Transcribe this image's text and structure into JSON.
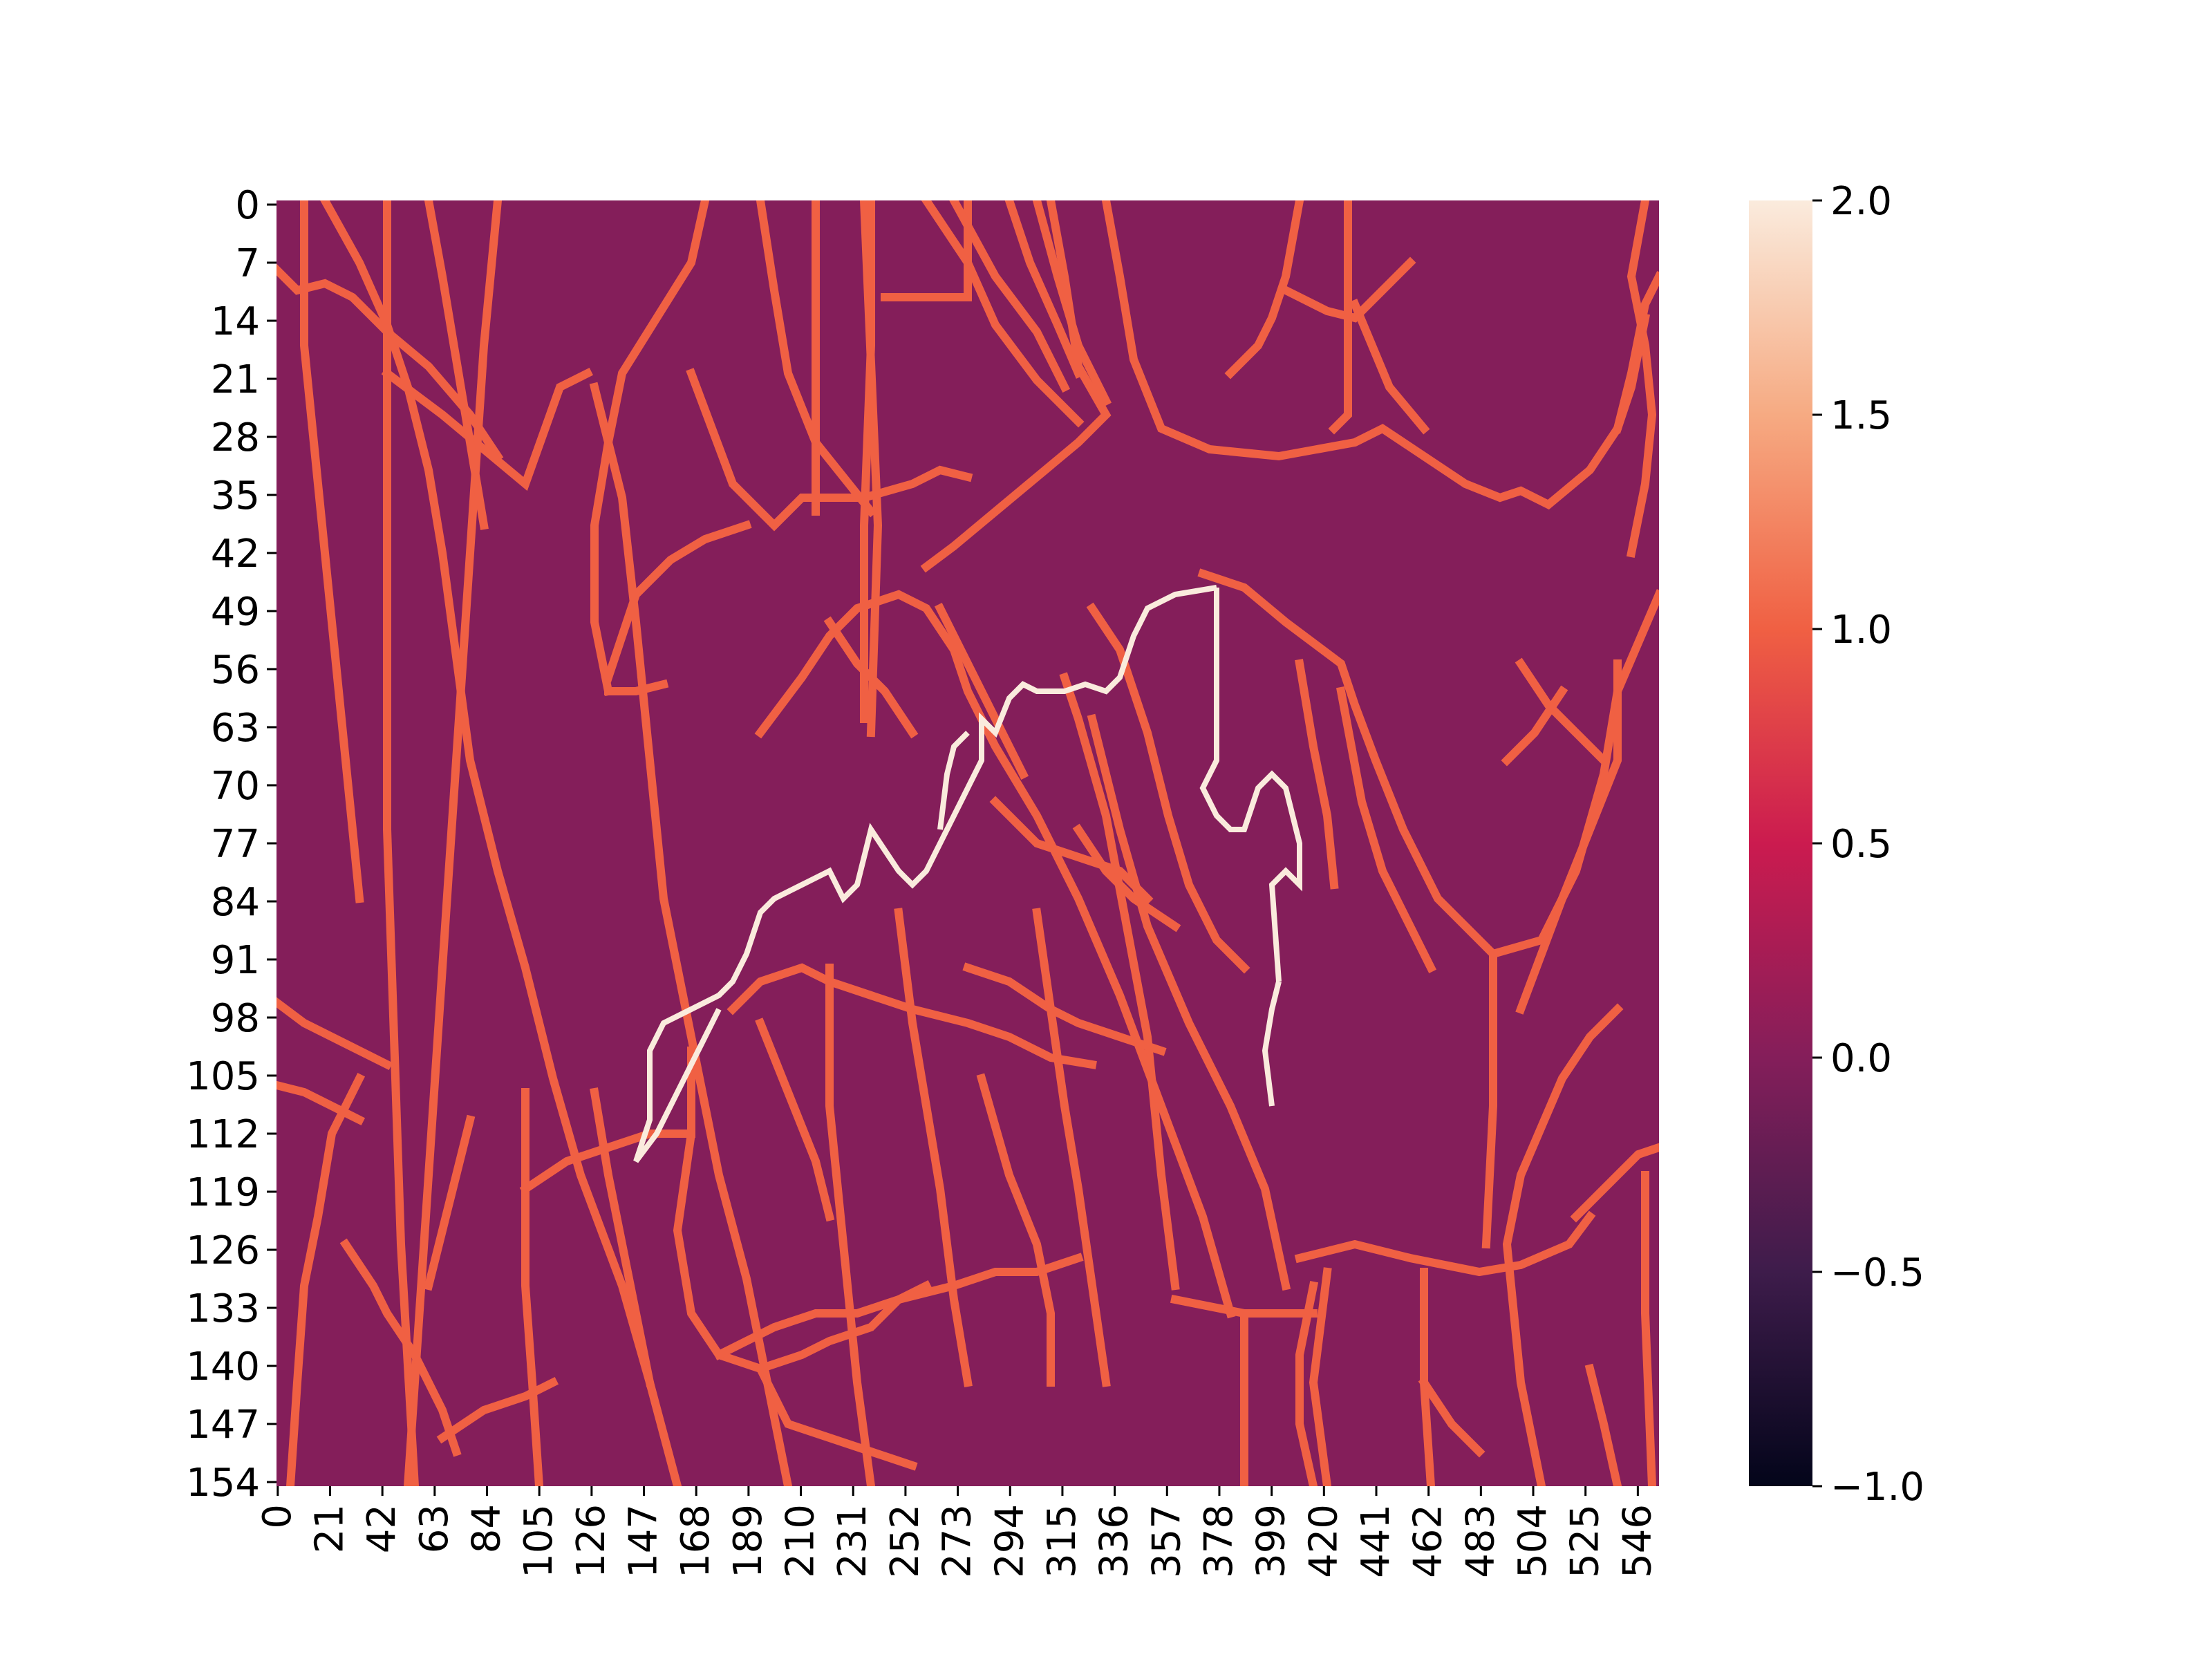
{
  "chart_data": {
    "type": "heatmap",
    "title": "",
    "xlabel": "",
    "ylabel": "",
    "n_cols": 555,
    "n_rows": 155,
    "x_ticks": [
      "0",
      "21",
      "42",
      "63",
      "84",
      "105",
      "126",
      "147",
      "168",
      "189",
      "210",
      "231",
      "252",
      "273",
      "294",
      "315",
      "336",
      "357",
      "378",
      "399",
      "420",
      "441",
      "462",
      "483",
      "504",
      "525",
      "546"
    ],
    "y_ticks": [
      "0",
      "7",
      "14",
      "21",
      "28",
      "35",
      "42",
      "49",
      "56",
      "63",
      "70",
      "77",
      "84",
      "91",
      "98",
      "105",
      "112",
      "119",
      "126",
      "133",
      "140",
      "147",
      "154"
    ],
    "value_range": [
      -1.0,
      2.0
    ],
    "colormap": "rocket",
    "colorbar": {
      "ticks": [
        "2.0",
        "1.5",
        "1.0",
        "0.5",
        "0.0",
        "−0.5",
        "−1.0"
      ],
      "tick_values": [
        2.0,
        1.5,
        1.0,
        0.5,
        0.0,
        -0.5,
        -1.0
      ]
    },
    "values_present": [
      0,
      1,
      2
    ],
    "background_value": 0,
    "colors": {
      "background": "#841e5a",
      "edge_value_1": "#f06043",
      "edge_value_2": "#faebdd"
    },
    "description_of_cells": "Mostly value 0, with value-1 curve traces and a short value-2 trace"
  }
}
